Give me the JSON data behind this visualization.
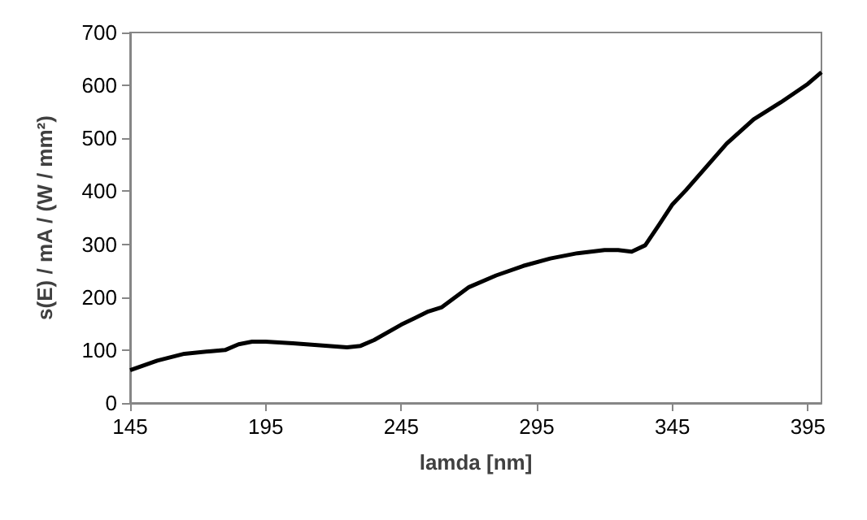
{
  "chart_data": {
    "type": "line",
    "xlabel": "lamda [nm]",
    "ylabel": "s(E) / mA / (W / mm²)",
    "x": [
      145,
      155,
      165,
      175,
      180,
      185,
      190,
      195,
      205,
      215,
      225,
      230,
      235,
      245,
      255,
      260,
      270,
      280,
      290,
      300,
      310,
      320,
      325,
      330,
      335,
      340,
      345,
      350,
      365,
      375,
      385,
      395,
      400
    ],
    "series": [
      {
        "color": "#000000",
        "values": [
          62,
          80,
          93,
          98,
          100,
          111,
          116,
          116,
          113,
          109,
          105,
          108,
          119,
          148,
          173,
          181,
          219,
          241,
          259,
          273,
          283,
          289,
          289,
          286,
          298,
          336,
          375,
          402,
          490,
          536,
          568,
          603,
          625
        ]
      }
    ],
    "xlim": [
      145,
      400
    ],
    "xticks": [
      145,
      195,
      245,
      295,
      345,
      395
    ],
    "ylim": [
      0,
      700
    ],
    "yticks": [
      0,
      100,
      200,
      300,
      400,
      500,
      600,
      700
    ],
    "grid": false,
    "marker": "none",
    "line_style": "solid"
  }
}
